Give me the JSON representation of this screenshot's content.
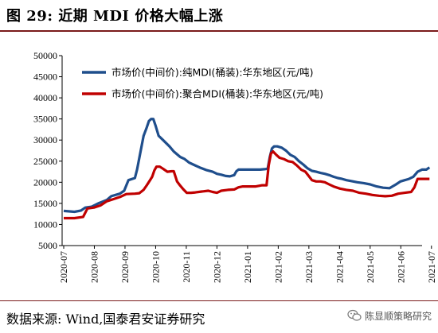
{
  "title": "图 29:  近期 MDI 价格大幅上涨",
  "source": "数据来源:  Wind,国泰君安证券研究",
  "watermark": "陈显顺策略研究",
  "colors": {
    "series1": "#1f4e8c",
    "series2": "#c00000",
    "accent_rule": "#7a1a1a"
  },
  "chart_data": {
    "type": "line",
    "ylim": [
      5000,
      50000
    ],
    "yticks": [
      "50000",
      "45000",
      "40000",
      "35000",
      "30000",
      "25000",
      "20000",
      "15000",
      "10000",
      "5000"
    ],
    "xticks": [
      "2020-07",
      "2020-08",
      "2020-09",
      "2020-10",
      "2020-11",
      "2020-12",
      "2021-01",
      "2021-02",
      "2021-03",
      "2021-04",
      "2021-05",
      "2021-06",
      "2021-07"
    ],
    "legend_position": "top-left",
    "series": [
      {
        "name": "市场价(中间价):纯MDI(桶装):华东地区(元/吨)",
        "points": [
          [
            0,
            13200
          ],
          [
            0.5,
            13000
          ],
          [
            0.8,
            13300
          ],
          [
            1.0,
            14000
          ],
          [
            1.3,
            14200
          ],
          [
            1.6,
            15000
          ],
          [
            2.0,
            15800
          ],
          [
            2.2,
            16700
          ],
          [
            2.6,
            17300
          ],
          [
            2.8,
            18000
          ],
          [
            3.0,
            20500
          ],
          [
            3.3,
            21000
          ],
          [
            3.4,
            23000
          ],
          [
            3.55,
            27000
          ],
          [
            3.7,
            31000
          ],
          [
            3.85,
            33000
          ],
          [
            3.95,
            34500
          ],
          [
            4.05,
            35000
          ],
          [
            4.15,
            35000
          ],
          [
            4.25,
            33500
          ],
          [
            4.4,
            31000
          ],
          [
            4.6,
            30000
          ],
          [
            4.9,
            28500
          ],
          [
            5.1,
            27300
          ],
          [
            5.4,
            26000
          ],
          [
            5.6,
            25500
          ],
          [
            5.8,
            24700
          ],
          [
            6.0,
            24200
          ],
          [
            6.3,
            23500
          ],
          [
            6.6,
            22900
          ],
          [
            6.9,
            22500
          ],
          [
            7.1,
            22000
          ],
          [
            7.3,
            21800
          ],
          [
            7.5,
            21500
          ],
          [
            7.7,
            21400
          ],
          [
            7.9,
            21700
          ],
          [
            8.0,
            22600
          ],
          [
            8.1,
            23000
          ],
          [
            8.5,
            23000
          ],
          [
            8.8,
            23000
          ],
          [
            9.1,
            23000
          ],
          [
            9.3,
            23100
          ],
          [
            9.45,
            23200
          ],
          [
            9.55,
            26000
          ],
          [
            9.65,
            28000
          ],
          [
            9.75,
            28500
          ],
          [
            9.9,
            28500
          ],
          [
            10.1,
            28200
          ],
          [
            10.3,
            27500
          ],
          [
            10.5,
            26500
          ],
          [
            10.7,
            26000
          ],
          [
            10.9,
            25000
          ],
          [
            11.1,
            24200
          ],
          [
            11.3,
            23300
          ],
          [
            11.5,
            22700
          ],
          [
            11.7,
            22500
          ],
          [
            11.9,
            22200
          ],
          [
            12.1,
            22000
          ],
          [
            12.3,
            21700
          ],
          [
            12.5,
            21300
          ],
          [
            12.7,
            21000
          ],
          [
            12.9,
            20800
          ],
          [
            13.1,
            20500
          ],
          [
            13.3,
            20300
          ],
          [
            13.6,
            20000
          ],
          [
            13.9,
            19800
          ],
          [
            14.2,
            19500
          ],
          [
            14.5,
            19000
          ],
          [
            14.8,
            18700
          ],
          [
            15.1,
            18600
          ],
          [
            15.4,
            19500
          ],
          [
            15.6,
            20200
          ],
          [
            15.8,
            20500
          ],
          [
            16.0,
            20800
          ],
          [
            16.2,
            21300
          ],
          [
            16.4,
            22500
          ],
          [
            16.6,
            23000
          ],
          [
            16.8,
            23000
          ],
          [
            16.95,
            23500
          ]
        ]
      },
      {
        "name": "市场价(中间价):聚合MDI(桶装):华东地区(元/吨)",
        "points": [
          [
            0,
            11500
          ],
          [
            0.5,
            11500
          ],
          [
            0.9,
            11800
          ],
          [
            1.1,
            13800
          ],
          [
            1.4,
            14000
          ],
          [
            1.7,
            14500
          ],
          [
            2.0,
            15500
          ],
          [
            2.3,
            16000
          ],
          [
            2.6,
            16500
          ],
          [
            2.9,
            17200
          ],
          [
            3.3,
            17300
          ],
          [
            3.5,
            17400
          ],
          [
            3.7,
            18200
          ],
          [
            3.85,
            19300
          ],
          [
            4.0,
            20500
          ],
          [
            4.1,
            21300
          ],
          [
            4.2,
            22800
          ],
          [
            4.3,
            23700
          ],
          [
            4.45,
            23700
          ],
          [
            4.6,
            23200
          ],
          [
            4.8,
            22500
          ],
          [
            5.0,
            22600
          ],
          [
            5.1,
            22600
          ],
          [
            5.25,
            20200
          ],
          [
            5.4,
            19200
          ],
          [
            5.55,
            18300
          ],
          [
            5.7,
            17500
          ],
          [
            5.9,
            17500
          ],
          [
            6.1,
            17600
          ],
          [
            6.4,
            17800
          ],
          [
            6.7,
            18000
          ],
          [
            6.9,
            17700
          ],
          [
            7.1,
            17500
          ],
          [
            7.3,
            18000
          ],
          [
            7.6,
            18200
          ],
          [
            7.9,
            18300
          ],
          [
            8.1,
            18800
          ],
          [
            8.3,
            19000
          ],
          [
            8.6,
            19000
          ],
          [
            8.9,
            19000
          ],
          [
            9.2,
            19300
          ],
          [
            9.4,
            19300
          ],
          [
            9.5,
            24000
          ],
          [
            9.6,
            26800
          ],
          [
            9.7,
            27300
          ],
          [
            9.85,
            26500
          ],
          [
            10.0,
            25800
          ],
          [
            10.2,
            25500
          ],
          [
            10.4,
            25000
          ],
          [
            10.6,
            24800
          ],
          [
            10.8,
            24000
          ],
          [
            11.0,
            23000
          ],
          [
            11.2,
            22500
          ],
          [
            11.35,
            21500
          ],
          [
            11.5,
            20500
          ],
          [
            11.7,
            20200
          ],
          [
            11.9,
            20200
          ],
          [
            12.1,
            20000
          ],
          [
            12.3,
            19500
          ],
          [
            12.5,
            19000
          ],
          [
            12.8,
            18500
          ],
          [
            13.1,
            18200
          ],
          [
            13.4,
            18000
          ],
          [
            13.7,
            17500
          ],
          [
            14.0,
            17300
          ],
          [
            14.3,
            17000
          ],
          [
            14.6,
            16800
          ],
          [
            14.9,
            16700
          ],
          [
            15.2,
            16800
          ],
          [
            15.5,
            17300
          ],
          [
            15.8,
            17500
          ],
          [
            16.1,
            17700
          ],
          [
            16.25,
            18800
          ],
          [
            16.4,
            20800
          ],
          [
            16.6,
            20800
          ],
          [
            16.8,
            20800
          ],
          [
            16.95,
            20800
          ]
        ]
      }
    ]
  }
}
